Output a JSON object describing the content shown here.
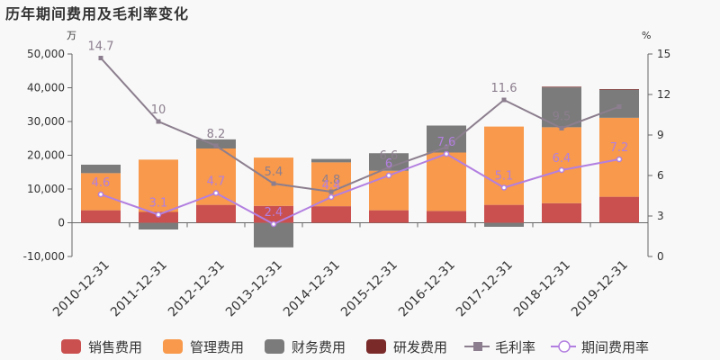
{
  "title": "历年期间费用及毛利率变化",
  "chart_data": {
    "type": "bar",
    "title": "历年期间费用及毛利率变化",
    "stacked": true,
    "categories": [
      "2010-12-31",
      "2011-12-31",
      "2012-12-31",
      "2013-12-31",
      "2014-12-31",
      "2015-12-31",
      "2016-12-31",
      "2017-12-31",
      "2018-12-31",
      "2019-12-31"
    ],
    "y_left": {
      "unit": "万",
      "range": [
        -10000,
        50000
      ],
      "ticks": [
        "-10,000",
        "0",
        "10,000",
        "20,000",
        "30,000",
        "40,000",
        "50,000"
      ]
    },
    "y_right": {
      "unit": "%",
      "range": [
        0,
        15
      ],
      "ticks": [
        "0",
        "3",
        "6",
        "9",
        "12",
        "15"
      ]
    },
    "series": [
      {
        "name": "销售费用",
        "kind": "bar",
        "axis": "left",
        "color": "#c9504f",
        "values": [
          3700,
          3200,
          5300,
          5000,
          4900,
          3700,
          3500,
          5300,
          5800,
          7700
        ]
      },
      {
        "name": "管理费用",
        "kind": "bar",
        "axis": "left",
        "color": "#f8994b",
        "values": [
          11000,
          15500,
          16700,
          14300,
          13000,
          11700,
          17300,
          23200,
          22500,
          23400
        ]
      },
      {
        "name": "财务费用",
        "kind": "bar",
        "axis": "left",
        "color": "#7b7b7b",
        "values": [
          2500,
          -2000,
          2700,
          -7300,
          1000,
          5200,
          8000,
          -1200,
          11800,
          8300
        ]
      },
      {
        "name": "研发费用",
        "kind": "bar",
        "axis": "left",
        "color": "#7b2a2a",
        "values": [
          0,
          0,
          0,
          0,
          0,
          0,
          0,
          0,
          200,
          200
        ]
      },
      {
        "name": "毛利率",
        "kind": "line",
        "axis": "right",
        "color": "#8c7e8e",
        "marker": "square",
        "values": [
          14.7,
          10,
          8.2,
          5.4,
          4.8,
          6.6,
          8.1,
          11.6,
          9.5,
          11.1
        ],
        "labels": [
          "14.7",
          "10",
          "8.2",
          "5.4",
          "4.8",
          "6.6",
          "",
          "11.6",
          "9.5",
          ""
        ]
      },
      {
        "name": "期间费用率",
        "kind": "line",
        "axis": "right",
        "color": "#b27fe0",
        "marker": "circle",
        "values": [
          4.6,
          3.1,
          4.7,
          2.4,
          4.4,
          6.0,
          7.6,
          5.1,
          6.4,
          7.2
        ],
        "labels": [
          "4.6",
          "3.1",
          "4.7",
          "2.4",
          "4.4",
          "6",
          "7.6",
          "5.1",
          "6.4",
          "7.2"
        ]
      }
    ],
    "legend": {
      "position": "bottom"
    }
  }
}
